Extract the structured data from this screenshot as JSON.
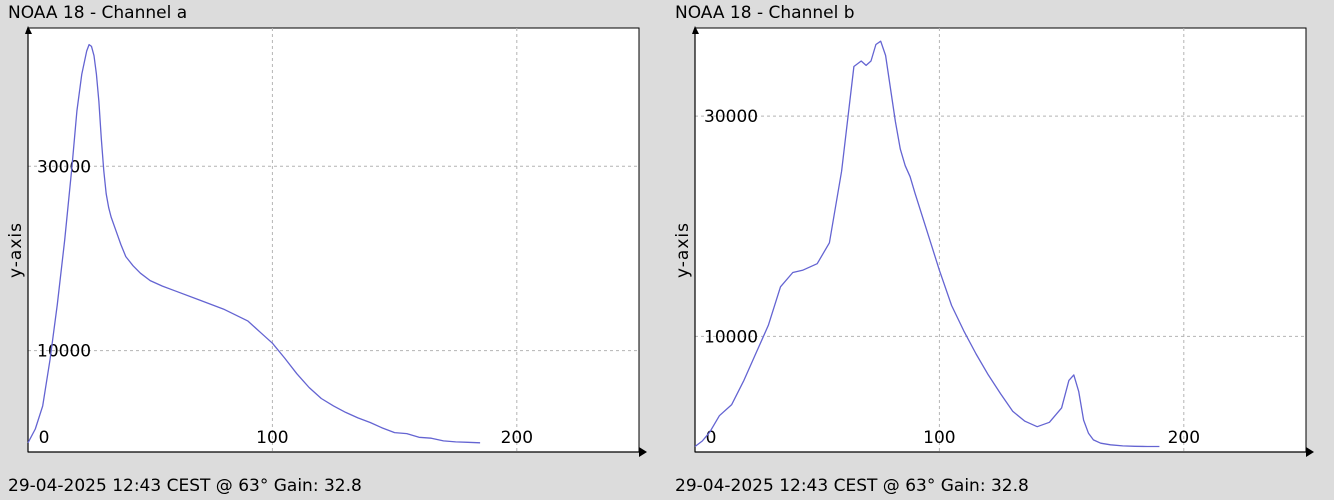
{
  "chart_data": [
    {
      "type": "line",
      "title": "NOAA 18 - Channel a",
      "footer": "29-04-2025 12:43 CEST @ 63° Gain: 32.8",
      "xlabel": "",
      "ylabel": "y-axis",
      "xlim": [
        0,
        250
      ],
      "ylim": [
        -1000,
        45000
      ],
      "x_ticks": [
        0,
        100,
        200
      ],
      "y_ticks": [
        10000,
        30000
      ],
      "grid": true,
      "line_color": "#6464d2",
      "series": [
        {
          "x": [
            0,
            3,
            6,
            9,
            12,
            15,
            18,
            20,
            22,
            24,
            25,
            26,
            27,
            28,
            29,
            30,
            31,
            32,
            33,
            34,
            36,
            38,
            40,
            43,
            46,
            50,
            55,
            60,
            70,
            80,
            90,
            95,
            100,
            105,
            110,
            115,
            120,
            125,
            130,
            135,
            140,
            145,
            150,
            155,
            160,
            165,
            170,
            175,
            180,
            185
          ],
          "y": [
            0,
            1500,
            4000,
            9000,
            15000,
            22000,
            30000,
            36000,
            40000,
            42500,
            43200,
            43000,
            42000,
            40000,
            37000,
            33000,
            29500,
            27000,
            25500,
            24500,
            23000,
            21500,
            20200,
            19200,
            18400,
            17600,
            17000,
            16500,
            15500,
            14500,
            13200,
            12000,
            10800,
            9200,
            7500,
            6000,
            4800,
            4000,
            3300,
            2700,
            2200,
            1600,
            1100,
            1000,
            600,
            500,
            200,
            100,
            50,
            0
          ]
        }
      ]
    },
    {
      "type": "line",
      "title": "NOAA 18 - Channel b",
      "footer": "29-04-2025 12:43 CEST @ 63° Gain: 32.8",
      "xlabel": "",
      "ylabel": "y-axis",
      "xlim": [
        0,
        250
      ],
      "ylim": [
        -500,
        38000
      ],
      "x_ticks": [
        0,
        100,
        200
      ],
      "y_ticks": [
        10000,
        30000
      ],
      "grid": true,
      "line_color": "#6464d2",
      "series": [
        {
          "x": [
            0,
            3,
            6,
            10,
            15,
            20,
            25,
            30,
            35,
            40,
            44,
            50,
            55,
            60,
            65,
            68,
            70,
            72,
            74,
            76,
            78,
            80,
            82,
            84,
            86,
            88,
            90,
            95,
            100,
            105,
            110,
            115,
            120,
            125,
            130,
            135,
            140,
            145,
            150,
            153,
            155,
            157,
            159,
            161,
            163,
            166,
            170,
            175,
            180,
            185,
            190
          ],
          "y": [
            0,
            500,
            1300,
            2800,
            3800,
            6000,
            8500,
            11000,
            14500,
            15800,
            16000,
            16600,
            18500,
            25000,
            34500,
            35000,
            34600,
            35000,
            36500,
            36800,
            35500,
            32500,
            29500,
            27000,
            25500,
            24500,
            23000,
            19500,
            16000,
            12800,
            10500,
            8400,
            6500,
            4800,
            3200,
            2300,
            1800,
            2200,
            3500,
            6000,
            6500,
            5000,
            2400,
            1200,
            600,
            300,
            150,
            50,
            20,
            0,
            0
          ]
        }
      ]
    }
  ]
}
